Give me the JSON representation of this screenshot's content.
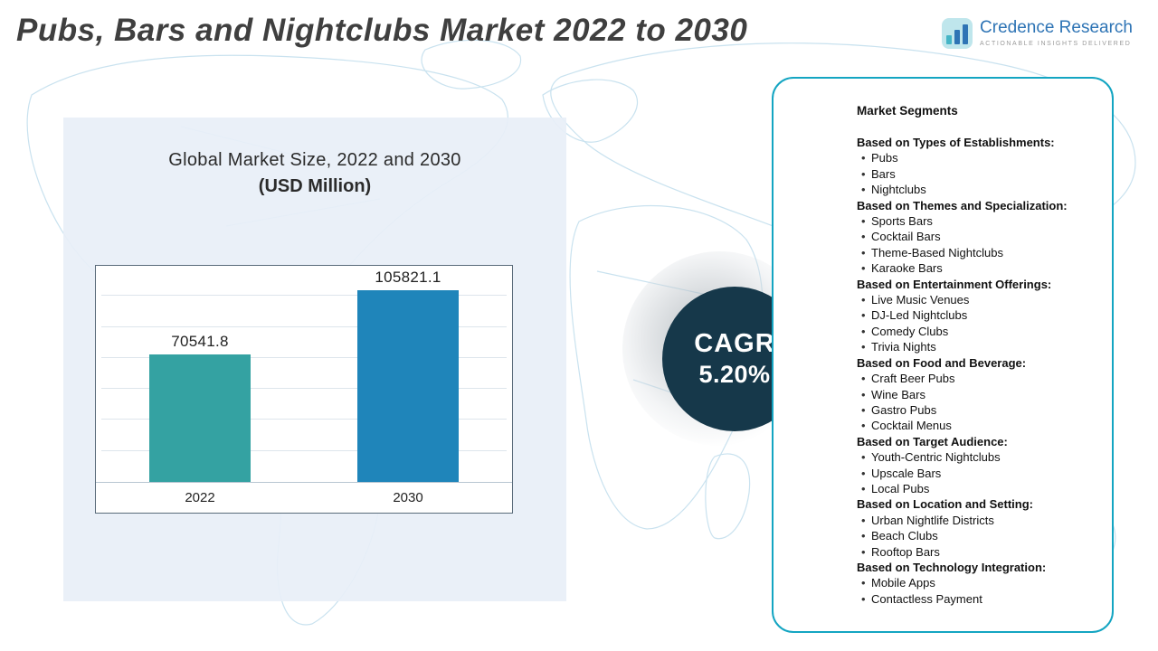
{
  "title": "Pubs, Bars and Nightclubs Market 2022 to 2030",
  "logo": {
    "name": "Credence Research",
    "tagline": "Actionable Insights Delivered",
    "brand_color": "#2e74b5",
    "icon_color": "#45b5c6"
  },
  "chart_panel": {
    "title_line1": "Global Market Size, 2022 and 2030",
    "title_line2": "(USD Million)"
  },
  "chart_data": {
    "type": "bar",
    "title": "Global Market Size, 2022 and 2030 (USD Million)",
    "categories": [
      "2022",
      "2030"
    ],
    "values": [
      70541.8,
      105821.1
    ],
    "value_labels": [
      "70541.8",
      "105821.1"
    ],
    "bar_colors": [
      "#34a2a2",
      "#1f85ba"
    ],
    "xlabel": "",
    "ylabel": "",
    "ylim": [
      0,
      120000
    ],
    "grid": true,
    "gridline_count": 6,
    "legend": "none"
  },
  "cagr": {
    "label": "CAGR",
    "value": "5.20%",
    "circle_color": "#16384a"
  },
  "segments": {
    "title": "Market Segments",
    "groups": [
      {
        "heading": "Based on Types of Establishments:",
        "items": [
          "Pubs",
          "Bars",
          "Nightclubs"
        ]
      },
      {
        "heading": "Based on Themes and Specialization:",
        "items": [
          "Sports Bars",
          "Cocktail Bars",
          "Theme-Based Nightclubs",
          "Karaoke Bars"
        ]
      },
      {
        "heading": "Based on Entertainment Offerings:",
        "items": [
          "Live Music Venues",
          "DJ-Led Nightclubs",
          "Comedy Clubs",
          "Trivia Nights"
        ]
      },
      {
        "heading": "Based on Food and Beverage:",
        "items": [
          "Craft Beer Pubs",
          "Wine Bars",
          "Gastro Pubs",
          "Cocktail Menus"
        ]
      },
      {
        "heading": "Based on Target Audience:",
        "items": [
          "Youth-Centric Nightclubs",
          "Upscale Bars",
          "Local Pubs"
        ]
      },
      {
        "heading": "Based on Location and Setting:",
        "items": [
          "Urban Nightlife Districts",
          "Beach Clubs",
          "Rooftop Bars"
        ]
      },
      {
        "heading": "Based on Technology Integration:",
        "items": [
          "Mobile Apps",
          "Contactless Payment"
        ]
      }
    ]
  }
}
